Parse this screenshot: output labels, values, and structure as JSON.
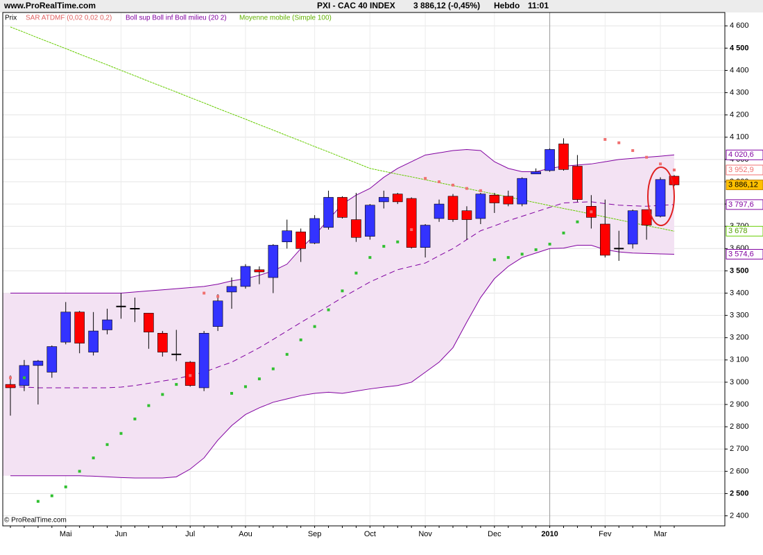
{
  "header": {
    "site": "www.ProRealTime.com",
    "symbol": "PXI - CAC 40 INDEX",
    "price": "3 886,12 (-0,45%)",
    "period": "Hebdo",
    "time": "11:01"
  },
  "footer": "© ProRealTime.com",
  "chart_data": {
    "type": "candlestick",
    "legend": {
      "price": "Prix",
      "sar": "SAR ATDMF (0,02 0,02 0,2)",
      "bollinger": "Boll sup Boll inf Boll milieu (20 2)",
      "ma": "Moyenne mobile (Simple 100)"
    },
    "categories": [
      null,
      null,
      null,
      null,
      "Mai",
      null,
      null,
      null,
      "Jun",
      null,
      null,
      null,
      null,
      "Jul",
      null,
      null,
      null,
      "Aou",
      null,
      null,
      null,
      null,
      "Sep",
      null,
      null,
      null,
      "Oct",
      null,
      null,
      null,
      "Nov",
      null,
      null,
      null,
      null,
      "Dec",
      null,
      null,
      null,
      "2010",
      null,
      null,
      null,
      "Fev",
      null,
      null,
      null,
      "Mar",
      null
    ],
    "open": [
      2990,
      2985,
      3075,
      3045,
      3180,
      3315,
      3135,
      3235,
      3340,
      3330,
      3310,
      3220,
      3125,
      3090,
      2975,
      3250,
      3405,
      3430,
      3505,
      3470,
      3630,
      3675,
      3625,
      3695,
      3830,
      3730,
      3655,
      3810,
      3845,
      3825,
      3605,
      3735,
      3835,
      3770,
      3735,
      3840,
      3835,
      3800,
      3935,
      3950,
      4070,
      3970,
      3790,
      3710,
      3600,
      3620,
      3775,
      3745,
      3925
    ],
    "high": [
      3030,
      3100,
      3100,
      3165,
      3360,
      3320,
      3315,
      3330,
      3400,
      3380,
      3310,
      3230,
      3235,
      3095,
      3230,
      3395,
      3470,
      3530,
      3520,
      3620,
      3730,
      3690,
      3750,
      3860,
      3835,
      3850,
      3800,
      3860,
      3850,
      3830,
      3710,
      3820,
      3845,
      3790,
      3850,
      3850,
      3860,
      3920,
      3960,
      4050,
      4095,
      4020,
      3840,
      3820,
      3680,
      3775,
      3775,
      3920,
      3930
    ],
    "low": [
      2850,
      2960,
      2900,
      3020,
      3170,
      3130,
      3120,
      3215,
      3285,
      3270,
      3150,
      3115,
      3095,
      2980,
      2960,
      3230,
      3330,
      3420,
      3440,
      3400,
      3600,
      3540,
      3620,
      3685,
      3735,
      3630,
      3640,
      3780,
      3800,
      3600,
      3560,
      3720,
      3720,
      3640,
      3710,
      3760,
      3790,
      3790,
      3935,
      3945,
      3950,
      3810,
      3690,
      3560,
      3545,
      3600,
      3640,
      3740,
      3880
    ],
    "close": [
      2975,
      3075,
      3095,
      3160,
      3315,
      3175,
      3230,
      3280,
      3340,
      3330,
      3225,
      3135,
      3125,
      2985,
      3220,
      3365,
      3430,
      3520,
      3495,
      3615,
      3680,
      3600,
      3735,
      3830,
      3740,
      3650,
      3795,
      3830,
      3810,
      3605,
      3705,
      3800,
      3730,
      3730,
      3845,
      3805,
      3800,
      3915,
      3945,
      4045,
      3955,
      3820,
      3740,
      3570,
      3600,
      3770,
      3705,
      3910,
      3886.12
    ],
    "close_last_label": "3 886,12",
    "up_color": "#3333ff",
    "down_color": "#ff0000",
    "doji_color": "#000000",
    "bollinger": {
      "color": "#8000a0",
      "fill": "#f3e2f3",
      "upper": [
        3400,
        3400,
        3400,
        3400,
        3400,
        3400,
        3400,
        3400,
        3400,
        3405,
        3410,
        3415,
        3420,
        3425,
        3430,
        3440,
        3455,
        3465,
        3480,
        3500,
        3530,
        3600,
        3660,
        3730,
        3800,
        3840,
        3870,
        3920,
        3960,
        3990,
        4020,
        4030,
        4040,
        4045,
        4040,
        3990,
        3960,
        3945,
        3945,
        3960,
        3970,
        3975,
        3980,
        3990,
        4000,
        4005,
        4010,
        4015,
        4020.6
      ],
      "lower": [
        2580,
        2580,
        2580,
        2580,
        2580,
        2580,
        2578,
        2575,
        2572,
        2570,
        2570,
        2570,
        2575,
        2610,
        2660,
        2740,
        2805,
        2855,
        2885,
        2910,
        2925,
        2940,
        2950,
        2955,
        2950,
        2960,
        2970,
        2978,
        2985,
        3000,
        3045,
        3090,
        3155,
        3270,
        3380,
        3465,
        3520,
        3560,
        3580,
        3600,
        3602,
        3615,
        3615,
        3595,
        3585,
        3580,
        3578,
        3576,
        3574.6
      ],
      "middle": [
        2980,
        2978,
        2975,
        2975,
        2975,
        2975,
        2975,
        2975,
        2978,
        2985,
        2995,
        3005,
        3015,
        3030,
        3045,
        3068,
        3090,
        3122,
        3155,
        3192,
        3230,
        3268,
        3305,
        3342,
        3380,
        3415,
        3450,
        3478,
        3505,
        3520,
        3535,
        3568,
        3600,
        3640,
        3680,
        3702,
        3725,
        3745,
        3765,
        3785,
        3805,
        3808,
        3810,
        3802,
        3795,
        3792,
        3790,
        3794,
        3797.6
      ],
      "upper_last_label": "4 020,6",
      "lower_last_label": "3 574,6",
      "middle_last_label": "3 797,6"
    },
    "sar": {
      "color_above": "#f07070",
      "color_below": "#30c030",
      "values": [
        3020,
        3020,
        2465,
        2490,
        2530,
        2600,
        2660,
        2720,
        2770,
        2835,
        2895,
        2945,
        2990,
        3030,
        3400,
        3385,
        2950,
        2980,
        3015,
        3060,
        3125,
        3190,
        3250,
        3325,
        3410,
        3490,
        3560,
        3610,
        3630,
        3685,
        3915,
        3900,
        3885,
        3870,
        3860,
        3550,
        3560,
        3575,
        3595,
        3620,
        3670,
        3720,
        3765,
        4090,
        4075,
        4040,
        4010,
        3980,
        3952.9
      ],
      "last_label": "3 952,9"
    },
    "ma": {
      "color": "#66cc00",
      "values": [
        4595,
        4571,
        4546,
        4522,
        4498,
        4473,
        4449,
        4425,
        4400,
        4376,
        4351,
        4327,
        4303,
        4278,
        4254,
        4229,
        4205,
        4181,
        4156,
        4132,
        4107,
        4083,
        4058,
        4034,
        4009,
        3985,
        3960,
        3947,
        3934,
        3922,
        3909,
        3896,
        3883,
        3870,
        3857,
        3845,
        3832,
        3819,
        3806,
        3793,
        3780,
        3768,
        3755,
        3742,
        3729,
        3716,
        3703,
        3691,
        3678
      ],
      "last_label": "3 678"
    },
    "ylim": [
      2355,
      4660
    ],
    "yticks": [
      {
        "value": 4600,
        "label": "4 600"
      },
      {
        "value": 4500,
        "label": "4 500"
      },
      {
        "value": 4400,
        "label": "4 400"
      },
      {
        "value": 4300,
        "label": "4 300"
      },
      {
        "value": 4200,
        "label": "4 200"
      },
      {
        "value": 4100,
        "label": "4 100"
      },
      {
        "value": 4000,
        "label": "4 000"
      },
      {
        "value": 3900,
        "label": "3 900"
      },
      {
        "value": 3800,
        "label": "3 800"
      },
      {
        "value": 3700,
        "label": "3 700"
      },
      {
        "value": 3600,
        "label": "3 600"
      },
      {
        "value": 3500,
        "label": "3 500"
      },
      {
        "value": 3400,
        "label": "3 400"
      },
      {
        "value": 3300,
        "label": "3 300"
      },
      {
        "value": 3200,
        "label": "3 200"
      },
      {
        "value": 3100,
        "label": "3 100"
      },
      {
        "value": 3000,
        "label": "3 000"
      },
      {
        "value": 2900,
        "label": "2 900"
      },
      {
        "value": 2800,
        "label": "2 800"
      },
      {
        "value": 2700,
        "label": "2 700"
      },
      {
        "value": 2600,
        "label": "2 600"
      },
      {
        "value": 2500,
        "label": "2 500"
      },
      {
        "value": 2400,
        "label": "2 400"
      }
    ],
    "grid": true
  }
}
